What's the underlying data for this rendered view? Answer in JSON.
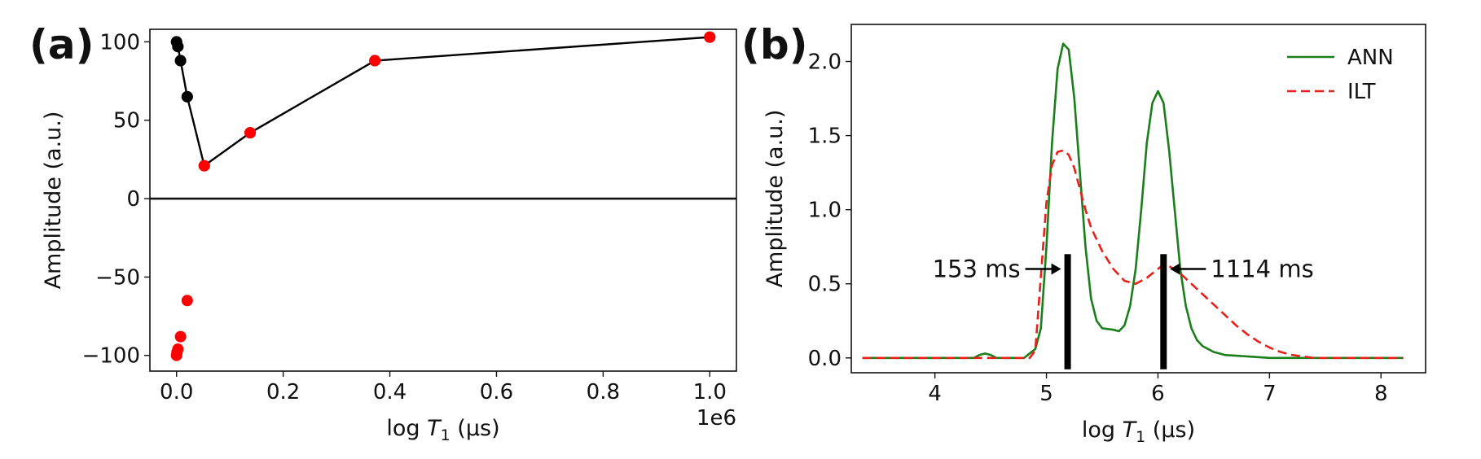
{
  "panels": [
    {
      "label": "(a)",
      "chart_data": {
        "type": "scatter",
        "xlabel": "log T_1 (μs)",
        "ylabel": "Amplitude (a.u.)",
        "xlim": [
          -0.05,
          1.05
        ],
        "ylim": [
          -110,
          108
        ],
        "x_ticks": [
          0.0,
          0.2,
          0.4,
          0.6,
          0.8,
          1.0
        ],
        "x_tick_labels": [
          "0.0",
          "0.2",
          "0.4",
          "0.6",
          "0.8",
          "1.0"
        ],
        "y_ticks": [
          -100,
          -50,
          0,
          50,
          100
        ],
        "y_tick_labels": [
          "−100",
          "−50",
          "0",
          "50",
          "100"
        ],
        "x_offset_label": "1e6",
        "hline_y": 0,
        "series": [
          {
            "color": "#000000",
            "marker": "o",
            "line": true,
            "x": [
              0.0,
              0.0025,
              0.0075,
              0.02,
              0.052,
              0.138,
              0.372,
              1.0
            ],
            "y": [
              100,
              97,
              88,
              65,
              21,
              42,
              88,
              103
            ]
          },
          {
            "color": "#000000",
            "marker": "o",
            "line": false,
            "x": [
              0.0,
              0.0025,
              0.0075,
              0.02
            ],
            "y": [
              100,
              97,
              88,
              65
            ]
          },
          {
            "color": "#ff0000",
            "marker": "o",
            "line": false,
            "x": [
              0.0,
              0.0008,
              0.0025,
              0.0075,
              0.02,
              0.052,
              0.138,
              0.372,
              1.0
            ],
            "y": [
              -100,
              -98,
              -96,
              -88,
              -65,
              21,
              42,
              88,
              103
            ]
          }
        ]
      }
    },
    {
      "label": "(b)",
      "chart_data": {
        "type": "line",
        "xlabel": "log T_1 (μs)",
        "ylabel": "Amplitude (a.u.)",
        "xlim": [
          3.25,
          8.4
        ],
        "ylim": [
          -0.1,
          2.25
        ],
        "x_ticks": [
          4,
          5,
          6,
          7,
          8
        ],
        "x_tick_labels": [
          "4",
          "5",
          "6",
          "7",
          "8"
        ],
        "y_ticks": [
          0.0,
          0.5,
          1.0,
          1.5,
          2.0
        ],
        "y_tick_labels": [
          "0.0",
          "0.5",
          "1.0",
          "1.5",
          "2.0"
        ],
        "legend_position": "top-right",
        "series": [
          {
            "name": "ANN",
            "color": "#1a7f1a",
            "dash": "solid",
            "x": [
              3.35,
              4.35,
              4.4,
              4.45,
              4.5,
              4.55,
              4.6,
              4.65,
              4.8,
              4.85,
              4.9,
              4.95,
              5.0,
              5.05,
              5.1,
              5.15,
              5.2,
              5.25,
              5.3,
              5.35,
              5.4,
              5.45,
              5.5,
              5.6,
              5.65,
              5.7,
              5.75,
              5.8,
              5.85,
              5.9,
              5.95,
              6.0,
              6.05,
              6.1,
              6.15,
              6.2,
              6.25,
              6.3,
              6.35,
              6.4,
              6.5,
              6.6,
              6.8,
              7.0,
              7.5,
              8.2
            ],
            "y": [
              0.0,
              0.0,
              0.02,
              0.03,
              0.02,
              0.0,
              0.0,
              0.0,
              0.0,
              0.03,
              0.06,
              0.2,
              0.75,
              1.45,
              1.95,
              2.12,
              2.08,
              1.75,
              1.25,
              0.75,
              0.4,
              0.25,
              0.2,
              0.19,
              0.18,
              0.22,
              0.35,
              0.6,
              1.0,
              1.45,
              1.72,
              1.8,
              1.72,
              1.4,
              1.0,
              0.6,
              0.35,
              0.2,
              0.12,
              0.08,
              0.04,
              0.02,
              0.01,
              0.0,
              0.0,
              0.0
            ]
          },
          {
            "name": "ILT",
            "color": "#e8201a",
            "dash": "dashed",
            "x": [
              3.35,
              4.85,
              4.9,
              4.95,
              5.0,
              5.05,
              5.1,
              5.15,
              5.2,
              5.25,
              5.3,
              5.35,
              5.4,
              5.5,
              5.6,
              5.7,
              5.8,
              5.9,
              6.0,
              6.05,
              6.1,
              6.2,
              6.3,
              6.4,
              6.5,
              6.6,
              6.7,
              6.8,
              6.9,
              7.0,
              7.1,
              7.2,
              7.3,
              7.4,
              7.5,
              8.2
            ],
            "y": [
              0.0,
              0.0,
              0.05,
              0.55,
              1.05,
              1.3,
              1.39,
              1.4,
              1.37,
              1.28,
              1.14,
              1.0,
              0.88,
              0.72,
              0.6,
              0.52,
              0.5,
              0.54,
              0.6,
              0.63,
              0.62,
              0.57,
              0.5,
              0.43,
              0.36,
              0.29,
              0.22,
              0.16,
              0.11,
              0.07,
              0.04,
              0.02,
              0.01,
              0.0,
              0.0,
              0.0
            ]
          }
        ],
        "vertical_bars": [
          {
            "x": 5.19,
            "height": 0.7,
            "label": "153 ms",
            "arrow_side": "left"
          },
          {
            "x": 6.05,
            "height": 0.7,
            "label": "1114 ms",
            "arrow_side": "right"
          }
        ]
      }
    }
  ]
}
